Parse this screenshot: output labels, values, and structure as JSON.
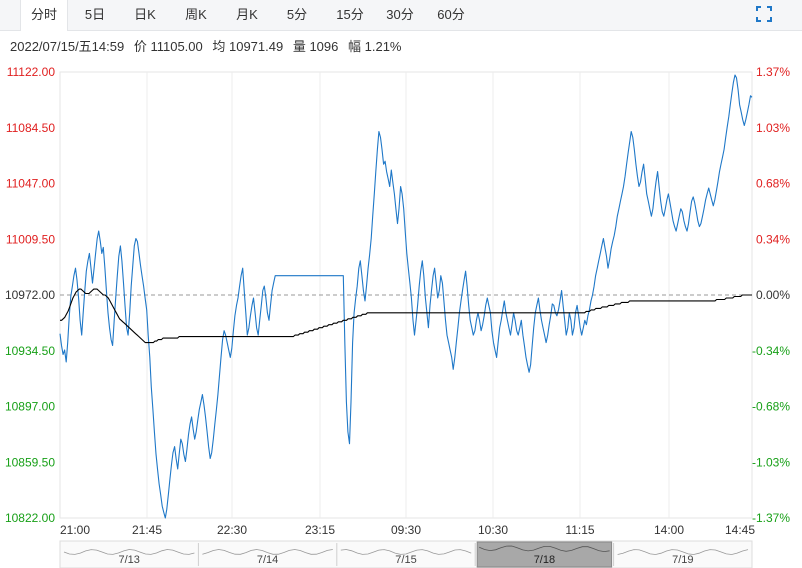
{
  "tabs": [
    {
      "label": "分时",
      "active": true
    },
    {
      "label": "5日",
      "active": false
    },
    {
      "label": "日K",
      "active": false
    },
    {
      "label": "周K",
      "active": false
    },
    {
      "label": "月K",
      "active": false
    },
    {
      "label": "5分",
      "active": false
    },
    {
      "label": "15分",
      "active": false
    },
    {
      "label": "30分",
      "active": false
    },
    {
      "label": "60分",
      "active": false
    }
  ],
  "info": {
    "datetime": "2022/07/15/五14:59",
    "price": "价 11105.00",
    "avg": "均 10971.49",
    "volume": "量 1096",
    "amplitude": "幅 1.21%"
  },
  "colors": {
    "price_line": "#1f78c8",
    "avg_line": "#000000",
    "up": "#e02020",
    "down": "#18a018",
    "neutral": "#333333"
  },
  "chart_data": {
    "type": "line",
    "ylim": [
      10822.0,
      11122.0
    ],
    "baseline": 10972.0,
    "y_ticks_left": [
      "11122.00",
      "11084.50",
      "11047.00",
      "11009.50",
      "10972.00",
      "10934.50",
      "10897.00",
      "10859.50",
      "10822.00"
    ],
    "y_ticks_right": [
      "1.37%",
      "1.03%",
      "0.68%",
      "0.34%",
      "0.00%",
      "-0.34%",
      "-0.68%",
      "-1.03%",
      "-1.37%"
    ],
    "x_ticks": [
      "21:00",
      "21:45",
      "22:30",
      "23:15",
      "09:30",
      "10:30",
      "11:15",
      "14:00",
      "14:45"
    ],
    "series": [
      {
        "values": [
          10946,
          10938,
          10932,
          10935,
          10927,
          10940,
          10958,
          10971,
          10978,
          10985,
          10990,
          10982,
          10970,
          10955,
          10945,
          10960,
          10975,
          10988,
          10995,
          11000,
          10990,
          10980,
          10990,
          11000,
          11010,
          11015,
          11008,
          11000,
          11004,
          10990,
          10975,
          10960,
          10950,
          10942,
          10938,
          10955,
          10970,
          10985,
          10998,
          11005,
          10995,
          10980,
          10965,
          10950,
          10945,
          10960,
          10978,
          10992,
          11005,
          11010,
          11008,
          11000,
          10992,
          10985,
          10978,
          10970,
          10962,
          10945,
          10930,
          10910,
          10895,
          10880,
          10865,
          10855,
          10845,
          10838,
          10830,
          10826,
          10822,
          10828,
          10838,
          10848,
          10858,
          10866,
          10870,
          10862,
          10855,
          10865,
          10875,
          10872,
          10865,
          10860,
          10868,
          10878,
          10885,
          10890,
          10882,
          10875,
          10880,
          10888,
          10895,
          10900,
          10905,
          10898,
          10890,
          10880,
          10870,
          10862,
          10866,
          10875,
          10885,
          10895,
          10905,
          10918,
          10930,
          10942,
          10948,
          10945,
          10940,
          10935,
          10930,
          10936,
          10948,
          10958,
          10965,
          10970,
          10978,
          10985,
          10990,
          10975,
          10960,
          10945,
          10950,
          10958,
          10965,
          10970,
          10960,
          10950,
          10945,
          10955,
          10965,
          10975,
          10978,
          10970,
          10960,
          10955,
          10965,
          10975,
          10980,
          10985,
          10985,
          10985,
          10985,
          10985,
          10985,
          10985,
          10985,
          10985,
          10985,
          10985,
          10985,
          10985,
          10985,
          10985,
          10985,
          10985,
          10985,
          10985,
          10985,
          10985,
          10985,
          10985,
          10985,
          10985,
          10985,
          10985,
          10985,
          10985,
          10985,
          10985,
          10985,
          10985,
          10985,
          10985,
          10985,
          10985,
          10985,
          10985,
          10985,
          10985,
          10985,
          10985,
          10985,
          10985,
          10938,
          10900,
          10880,
          10872,
          10900,
          10940,
          10960,
          10970,
          10978,
          10990,
          10995,
          10985,
          10975,
          10968,
          10978,
          10990,
          10999,
          11010,
          11025,
          11040,
          11055,
          11070,
          11082,
          11078,
          11070,
          11060,
          11062,
          11055,
          11050,
          11045,
          11056,
          11048,
          11040,
          11030,
          11020,
          11030,
          11045,
          11040,
          11030,
          11015,
          11000,
          10990,
          10980,
          10970,
          10955,
          10945,
          10955,
          10965,
          10978,
          10988,
          10995,
          10985,
          10970,
          10960,
          10950,
          10965,
          10975,
          10985,
          10990,
          10980,
          10970,
          10975,
          10985,
          10980,
          10968,
          10955,
          10945,
          10940,
          10935,
          10930,
          10922,
          10930,
          10940,
          10950,
          10960,
          10968,
          10975,
          10982,
          10988,
          10978,
          10965,
          10955,
          10950,
          10945,
          10948,
          10955,
          10960,
          10955,
          10948,
          10952,
          10958,
          10965,
          10970,
          10965,
          10960,
          10948,
          10940,
          10935,
          10930,
          10940,
          10950,
          10955,
          10962,
          10968,
          10960,
          10955,
          10950,
          10945,
          10952,
          10960,
          10955,
          10948,
          10945,
          10950,
          10955,
          10945,
          10938,
          10930,
          10925,
          10920,
          10925,
          10938,
          10950,
          10960,
          10965,
          10970,
          10962,
          10955,
          10950,
          10945,
          10940,
          10945,
          10952,
          10958,
          10966,
          10965,
          10960,
          10958,
          10962,
          10968,
          10975,
          10965,
          10955,
          10945,
          10950,
          10960,
          10955,
          10945,
          10950,
          10960,
          10965,
          10958,
          10950,
          10945,
          10950,
          10955,
          10952,
          10958,
          10962,
          10968,
          10972,
          10978,
          10985,
          10990,
          10995,
          11000,
          11005,
          11010,
          11004,
          10998,
          10990,
          10996,
          11003,
          11008,
          11012,
          11018,
          11025,
          11030,
          11035,
          11040,
          11045,
          11052,
          11060,
          11068,
          11075,
          11082,
          11078,
          11070,
          11060,
          11052,
          11045,
          11048,
          11055,
          11060,
          11050,
          11040,
          11035,
          11030,
          11025,
          11030,
          11040,
          11048,
          11055,
          11045,
          11035,
          11028,
          11025,
          11030,
          11036,
          11040,
          11034,
          11028,
          11022,
          11018,
          11015,
          11020,
          11025,
          11030,
          11028,
          11022,
          11018,
          11015,
          11020,
          11028,
          11035,
          11038,
          11034,
          11028,
          11022,
          11018,
          11020,
          11025,
          11030,
          11036,
          11040,
          11044,
          11040,
          11036,
          11032,
          11036,
          11042,
          11048,
          11055,
          11060,
          11065,
          11070,
          11078,
          11085,
          11092,
          11100,
          11108,
          11115,
          11120,
          11118,
          11110,
          11100,
          11095,
          11090,
          11086,
          11090,
          11095,
          11100,
          11106,
          11105
        ]
      },
      {
        "values": [
          10955,
          10955,
          10956,
          10957,
          10959,
          10961,
          10964,
          10967,
          10970,
          10972,
          10974,
          10975,
          10976,
          10976,
          10975,
          10974,
          10973,
          10973,
          10973,
          10974,
          10975,
          10976,
          10976,
          10976,
          10975,
          10974,
          10973,
          10972,
          10972,
          10971,
          10970,
          10968,
          10966,
          10964,
          10962,
          10960,
          10958,
          10956,
          10955,
          10954,
          10953,
          10952,
          10951,
          10950,
          10949,
          10948,
          10947,
          10946,
          10945,
          10944,
          10943,
          10942,
          10941,
          10940,
          10940,
          10940,
          10940,
          10940,
          10940,
          10941,
          10941,
          10942,
          10942,
          10942,
          10943,
          10943,
          10943,
          10943,
          10943,
          10943,
          10943,
          10943,
          10943,
          10943,
          10944,
          10944,
          10944,
          10944,
          10944,
          10944,
          10944,
          10944,
          10944,
          10944,
          10944,
          10944,
          10944,
          10944,
          10944,
          10944,
          10944,
          10944,
          10944,
          10944,
          10944,
          10944,
          10944,
          10944,
          10944,
          10944,
          10944,
          10944,
          10944,
          10944,
          10944,
          10944,
          10944,
          10944,
          10944,
          10944,
          10944,
          10944,
          10944,
          10944,
          10944,
          10944,
          10944,
          10944,
          10944,
          10944,
          10944,
          10944,
          10944,
          10944,
          10944,
          10944,
          10944,
          10944,
          10944,
          10944,
          10944,
          10944,
          10944,
          10944,
          10944,
          10944,
          10944,
          10944,
          10944,
          10944,
          10944,
          10944,
          10944,
          10944,
          10944,
          10944,
          10945,
          10945,
          10945,
          10946,
          10946,
          10946,
          10947,
          10947,
          10947,
          10948,
          10948,
          10948,
          10949,
          10949,
          10949,
          10950,
          10950,
          10950,
          10951,
          10951,
          10951,
          10952,
          10952,
          10952,
          10953,
          10953,
          10953,
          10954,
          10954,
          10954,
          10955,
          10955,
          10955,
          10956,
          10956,
          10956,
          10957,
          10957,
          10957,
          10958,
          10958,
          10958,
          10959,
          10959,
          10959,
          10960,
          10960,
          10960,
          10960,
          10960,
          10960,
          10960,
          10960,
          10960,
          10960,
          10960,
          10960,
          10960,
          10960,
          10960,
          10960,
          10960,
          10960,
          10960,
          10960,
          10960,
          10960,
          10960,
          10960,
          10960,
          10960,
          10960,
          10960,
          10960,
          10960,
          10960,
          10960,
          10960,
          10960,
          10960,
          10960,
          10960,
          10960,
          10960,
          10960,
          10960,
          10960,
          10960,
          10960,
          10960,
          10960,
          10960,
          10960,
          10960,
          10960,
          10960,
          10960,
          10960,
          10960,
          10960,
          10960,
          10960,
          10960,
          10960,
          10960,
          10960,
          10960,
          10960,
          10960,
          10960,
          10960,
          10960,
          10960,
          10960,
          10960,
          10960,
          10960,
          10960,
          10960,
          10960,
          10960,
          10960,
          10960,
          10960,
          10960,
          10960,
          10960,
          10960,
          10960,
          10960,
          10960,
          10960,
          10960,
          10960,
          10960,
          10960,
          10960,
          10960,
          10960,
          10960,
          10960,
          10960,
          10960,
          10960,
          10960,
          10960,
          10960,
          10960,
          10960,
          10960,
          10960,
          10960,
          10960,
          10960,
          10960,
          10960,
          10960,
          10960,
          10960,
          10960,
          10960,
          10960,
          10960,
          10960,
          10960,
          10960,
          10960,
          10960,
          10960,
          10960,
          10960,
          10960,
          10960,
          10960,
          10960,
          10960,
          10960,
          10960,
          10960,
          10960,
          10960,
          10961,
          10961,
          10961,
          10962,
          10962,
          10962,
          10963,
          10963,
          10963,
          10963,
          10964,
          10964,
          10964,
          10964,
          10965,
          10965,
          10965,
          10965,
          10966,
          10966,
          10966,
          10966,
          10967,
          10967,
          10967,
          10967,
          10967,
          10968,
          10968,
          10968,
          10968,
          10968,
          10968,
          10968,
          10968,
          10968,
          10968,
          10968,
          10968,
          10968,
          10968,
          10968,
          10968,
          10968,
          10968,
          10968,
          10968,
          10968,
          10968,
          10968,
          10968,
          10968,
          10968,
          10968,
          10968,
          10968,
          10968,
          10968,
          10968,
          10968,
          10968,
          10968,
          10968,
          10968,
          10968,
          10968,
          10968,
          10968,
          10968,
          10968,
          10968,
          10968,
          10968,
          10968,
          10968,
          10968,
          10968,
          10968,
          10968,
          10968,
          10968,
          10969,
          10969,
          10969,
          10969,
          10969,
          10969,
          10970,
          10970,
          10970,
          10970,
          10970,
          10971,
          10971,
          10971,
          10971,
          10971,
          10972,
          10972,
          10972,
          10972,
          10972,
          10972,
          10972
        ]
      }
    ],
    "navigator": {
      "dates": [
        "7/13",
        "7/14",
        "7/15",
        "7/18",
        "7/19"
      ],
      "selected": "7/18"
    }
  }
}
